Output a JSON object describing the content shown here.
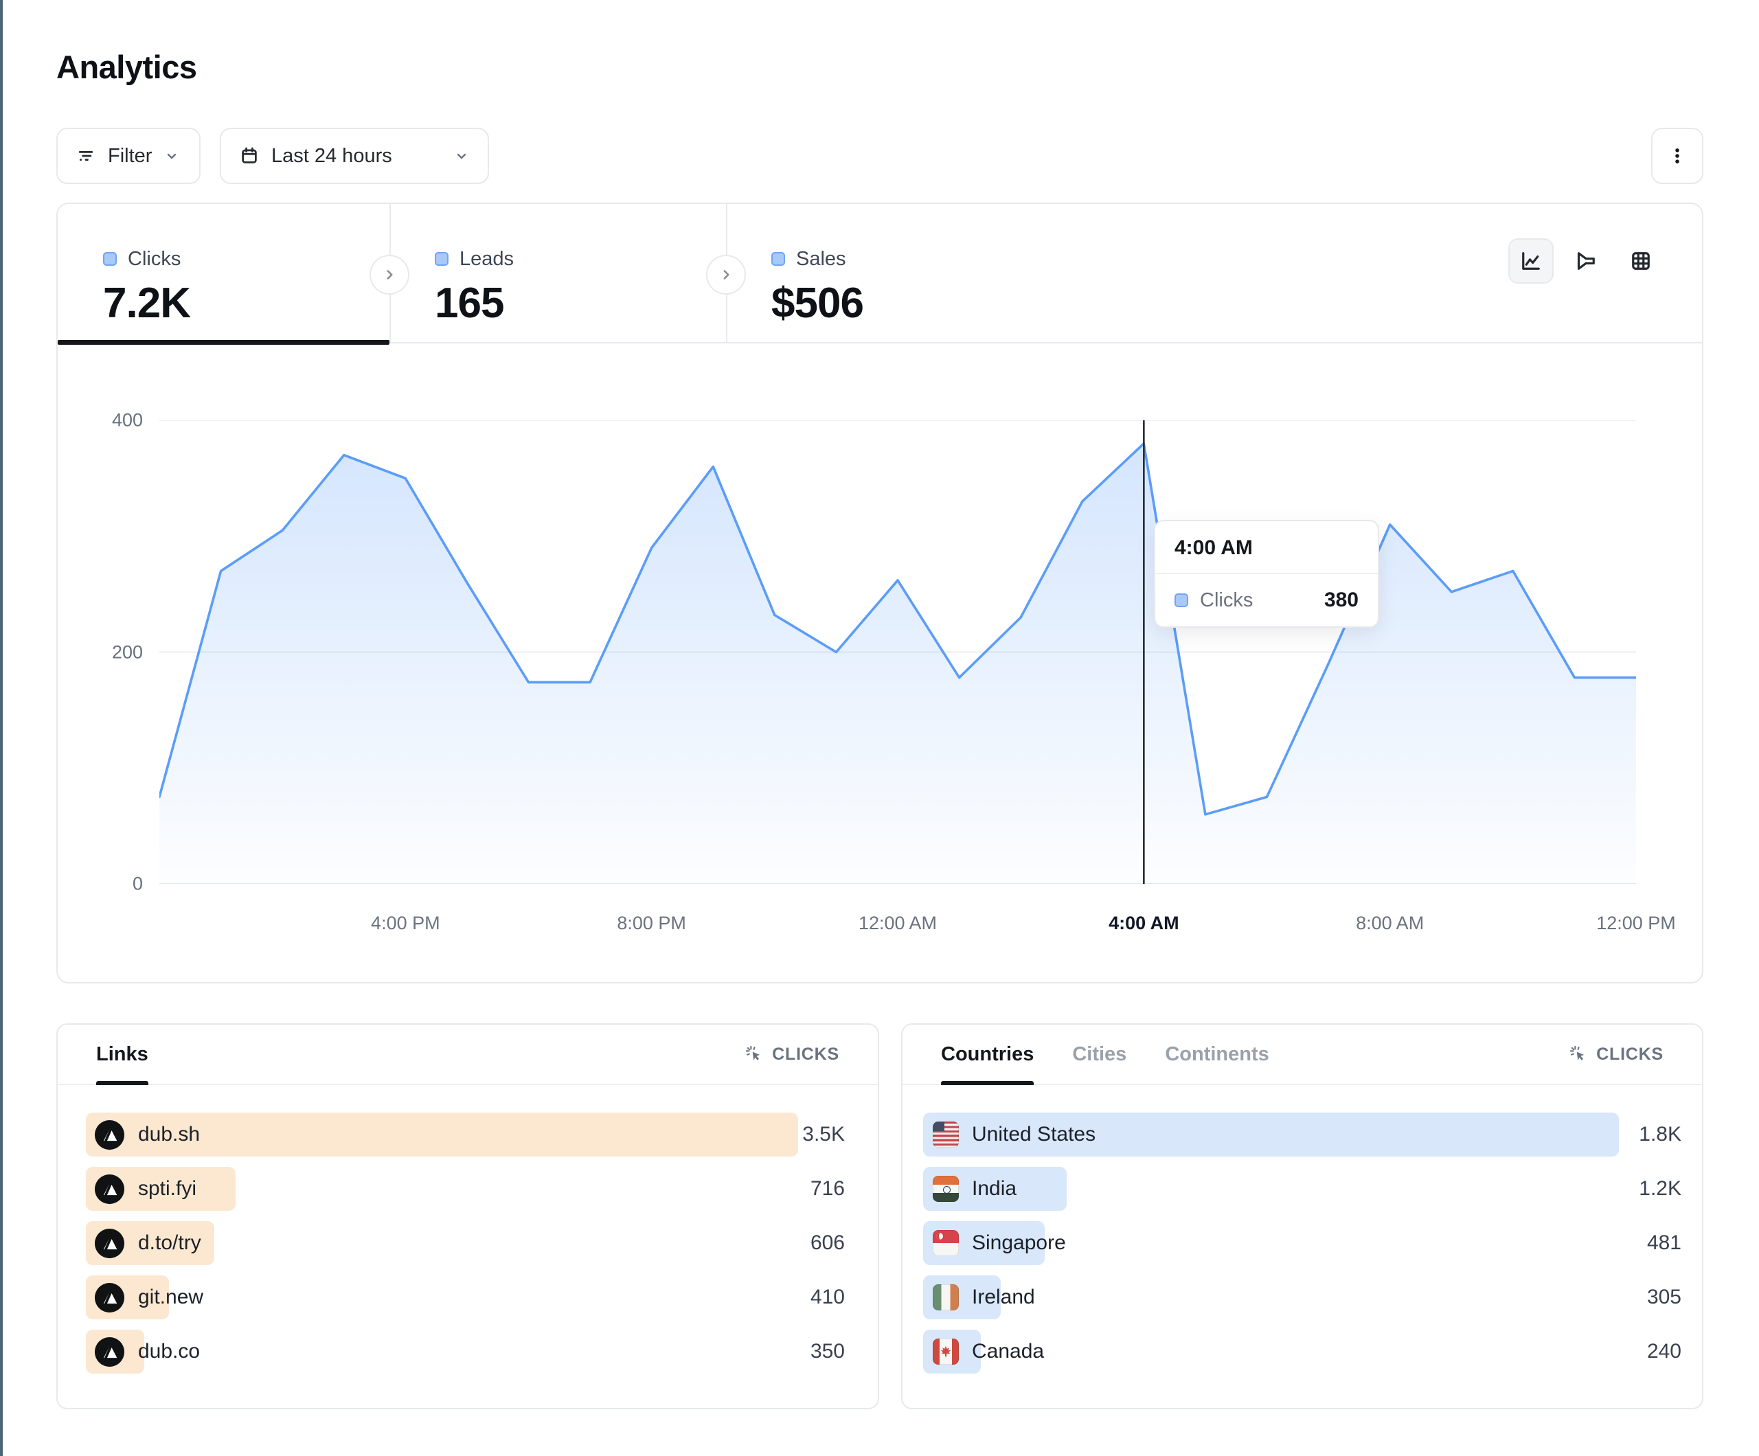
{
  "page": {
    "title": "Analytics"
  },
  "toolbar": {
    "filter": {
      "label": "Filter"
    },
    "date_range": {
      "label": "Last 24 hours"
    }
  },
  "stats": {
    "tabs": [
      {
        "label": "Clicks",
        "value": "7.2K",
        "active": true
      },
      {
        "label": "Leads",
        "value": "165",
        "active": false
      },
      {
        "label": "Sales",
        "value": "$506",
        "active": false
      }
    ]
  },
  "chart_data": {
    "type": "area",
    "title": "Clicks over last 24 hours",
    "series_name": "Clicks",
    "x": [
      "12:00 PM",
      "1:00 PM",
      "2:00 PM",
      "3:00 PM",
      "4:00 PM",
      "5:00 PM",
      "6:00 PM",
      "7:00 PM",
      "8:00 PM",
      "9:00 PM",
      "10:00 PM",
      "11:00 PM",
      "12:00 AM",
      "1:00 AM",
      "2:00 AM",
      "3:00 AM",
      "4:00 AM",
      "5:00 AM",
      "6:00 AM",
      "7:00 AM",
      "8:00 AM",
      "9:00 AM",
      "10:00 AM",
      "11:00 AM",
      "12:00 PM"
    ],
    "values": [
      75,
      270,
      305,
      370,
      350,
      260,
      174,
      174,
      290,
      360,
      232,
      200,
      262,
      178,
      230,
      330,
      380,
      60,
      75,
      190,
      310,
      252,
      270,
      178,
      178
    ],
    "ylim": [
      0,
      400
    ],
    "y_ticks": [
      0,
      200,
      400
    ],
    "x_tick_indices": [
      4,
      8,
      12,
      16,
      20,
      24
    ],
    "x_tick_labels": [
      "4:00 PM",
      "8:00 PM",
      "12:00 AM",
      "4:00 AM",
      "8:00 AM",
      "12:00 PM"
    ],
    "grid": "horizontal",
    "legend_position": "none",
    "highlight_index": 16
  },
  "tooltip": {
    "title": "4:00 AM",
    "series": "Clicks",
    "value": "380"
  },
  "links_panel": {
    "tabs": [
      {
        "label": "Links",
        "active": true
      }
    ],
    "metric": "CLICKS",
    "rows": [
      {
        "label": "dub.sh",
        "value": "3.5K",
        "bar_pct": 100
      },
      {
        "label": "spti.fyi",
        "value": "716",
        "bar_pct": 21
      },
      {
        "label": "d.to/try",
        "value": "606",
        "bar_pct": 18
      },
      {
        "label": "git.new",
        "value": "410",
        "bar_pct": 11.7
      },
      {
        "label": "dub.co",
        "value": "350",
        "bar_pct": 8.2
      }
    ]
  },
  "geo_panel": {
    "tabs": [
      {
        "label": "Countries",
        "active": true
      },
      {
        "label": "Cities",
        "active": false
      },
      {
        "label": "Continents",
        "active": false
      }
    ],
    "metric": "CLICKS",
    "rows": [
      {
        "label": "United States",
        "value": "1.8K",
        "flag": "us",
        "bar_pct": 100
      },
      {
        "label": "India",
        "value": "1.2K",
        "flag": "in",
        "bar_pct": 20.6
      },
      {
        "label": "Singapore",
        "value": "481",
        "flag": "sg",
        "bar_pct": 17.5
      },
      {
        "label": "Ireland",
        "value": "305",
        "flag": "ie",
        "bar_pct": 11.2
      },
      {
        "label": "Canada",
        "value": "240",
        "flag": "ca",
        "bar_pct": 7.9
      }
    ]
  },
  "colors": {
    "accent_blue": "#5b9df8",
    "area_fill_top": "rgba(91,157,248,0.26)",
    "area_fill_bottom": "rgba(91,157,248,0.015)",
    "legend_fill": "#a9c9f9",
    "legend_border": "#6ea6f5",
    "bar_orange": "#fce8d0",
    "bar_blue": "#d8e7fa",
    "crosshair": "#222b38",
    "gridline": "#eceef1",
    "left_edge": "#4d6570"
  }
}
